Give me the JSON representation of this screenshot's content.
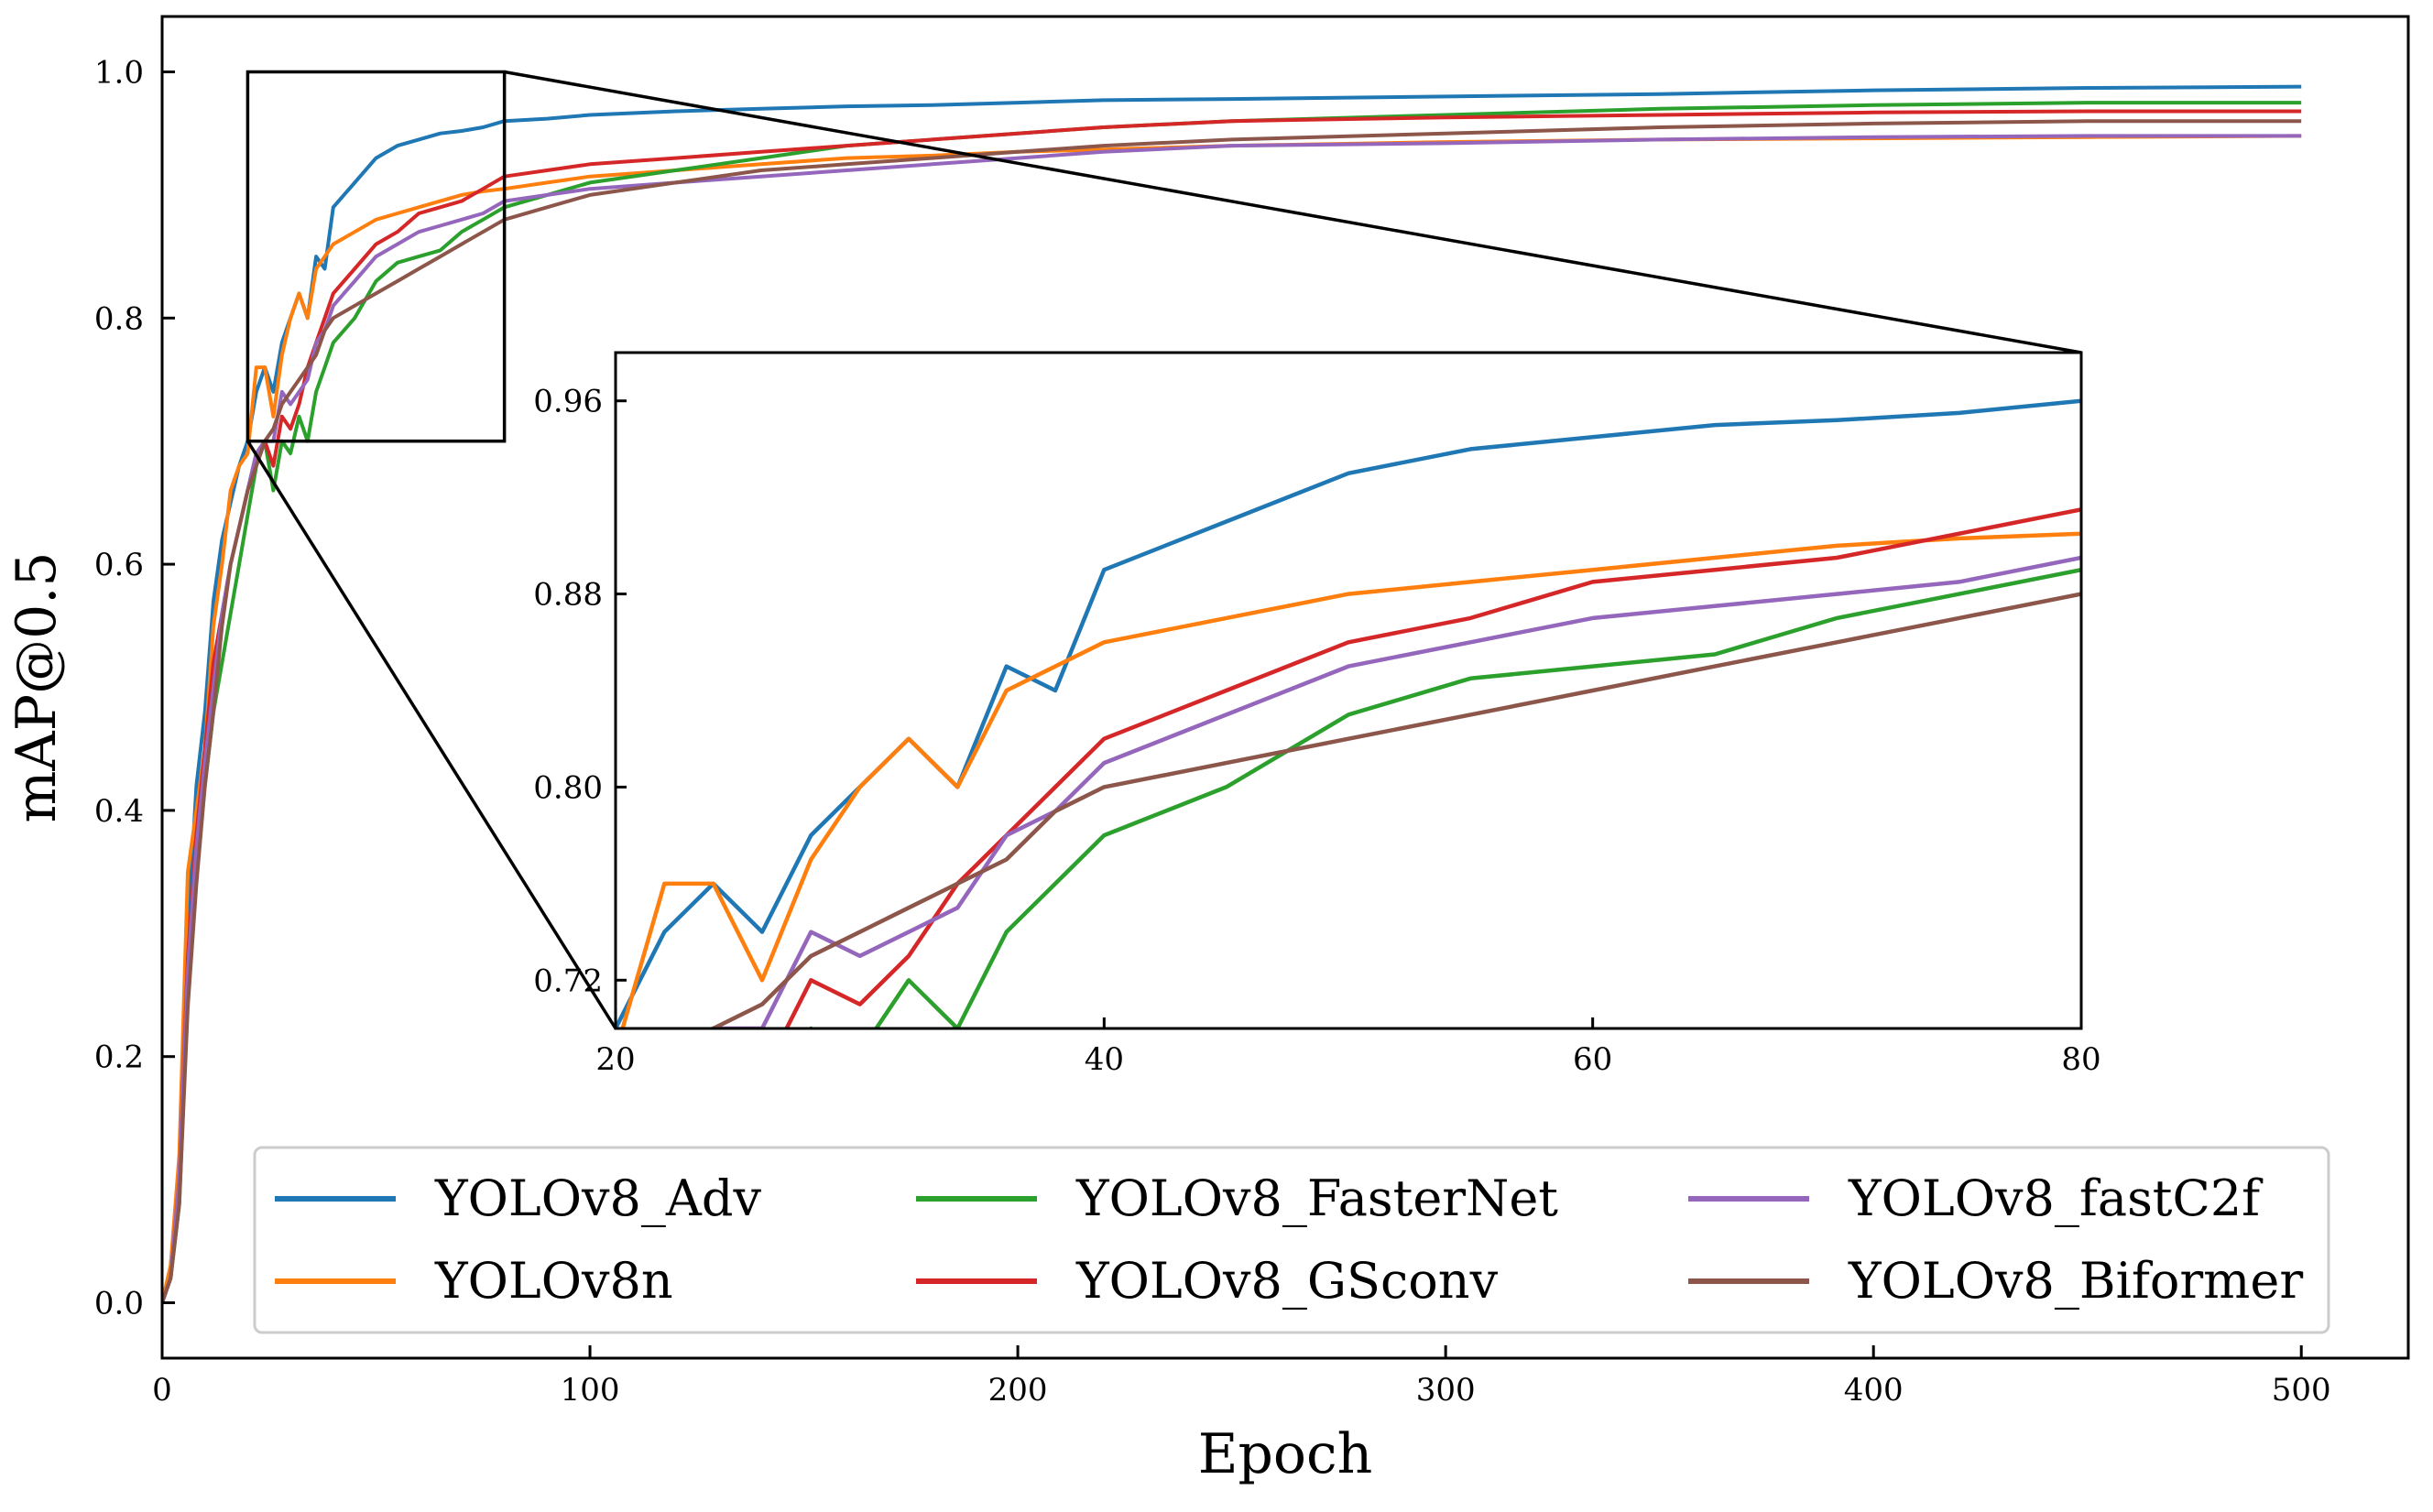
{
  "chart_data": {
    "type": "line",
    "xlabel": "Epoch",
    "ylabel": "mAP@0.5",
    "xlim": [
      0,
      525
    ],
    "ylim": [
      -0.045,
      1.045
    ],
    "x_ticks": [
      0,
      100,
      200,
      300,
      400,
      500
    ],
    "x_tick_labels": [
      "0",
      "100",
      "200",
      "300",
      "400",
      "500"
    ],
    "y_ticks": [
      0.0,
      0.2,
      0.4,
      0.6,
      0.8,
      1.0
    ],
    "y_tick_labels": [
      "0.0",
      "0.2",
      "0.4",
      "0.6",
      "0.8",
      "1.0"
    ],
    "legend_position": "lower-right",
    "series": [
      {
        "name": "YOLOv8_Adv",
        "color": "#1f77b4",
        "x": [
          0,
          2,
          4,
          6,
          8,
          10,
          12,
          14,
          16,
          18,
          20,
          22,
          24,
          26,
          28,
          30,
          32,
          34,
          36,
          38,
          40,
          45,
          50,
          55,
          60,
          65,
          70,
          75,
          80,
          90,
          100,
          120,
          140,
          160,
          180,
          200,
          220,
          250,
          300,
          350,
          400,
          450,
          500
        ],
        "y": [
          0.0,
          0.03,
          0.1,
          0.3,
          0.42,
          0.48,
          0.57,
          0.62,
          0.65,
          0.68,
          0.7,
          0.74,
          0.76,
          0.74,
          0.78,
          0.8,
          0.82,
          0.8,
          0.85,
          0.84,
          0.89,
          0.91,
          0.93,
          0.94,
          0.945,
          0.95,
          0.952,
          0.955,
          0.96,
          0.962,
          0.965,
          0.968,
          0.97,
          0.972,
          0.973,
          0.975,
          0.977,
          0.978,
          0.98,
          0.982,
          0.985,
          0.987,
          0.988
        ]
      },
      {
        "name": "YOLOv8n",
        "color": "#ff7f0e",
        "x": [
          0,
          2,
          4,
          6,
          8,
          10,
          12,
          14,
          16,
          18,
          20,
          22,
          24,
          26,
          28,
          30,
          32,
          34,
          36,
          38,
          40,
          45,
          50,
          55,
          60,
          65,
          70,
          75,
          80,
          90,
          100,
          120,
          140,
          160,
          180,
          200,
          220,
          250,
          300,
          350,
          400,
          450,
          500
        ],
        "y": [
          0.0,
          0.03,
          0.12,
          0.35,
          0.4,
          0.45,
          0.55,
          0.6,
          0.66,
          0.68,
          0.69,
          0.76,
          0.76,
          0.72,
          0.77,
          0.8,
          0.82,
          0.8,
          0.84,
          0.85,
          0.86,
          0.87,
          0.88,
          0.885,
          0.89,
          0.895,
          0.9,
          0.903,
          0.905,
          0.91,
          0.915,
          0.92,
          0.925,
          0.93,
          0.932,
          0.935,
          0.937,
          0.94,
          0.943,
          0.945,
          0.946,
          0.947,
          0.948
        ]
      },
      {
        "name": "YOLOv8_FasterNet",
        "color": "#2ca02c",
        "x": [
          0,
          2,
          4,
          6,
          8,
          10,
          12,
          14,
          16,
          18,
          20,
          22,
          24,
          26,
          28,
          30,
          32,
          34,
          36,
          38,
          40,
          45,
          50,
          55,
          60,
          65,
          70,
          75,
          80,
          90,
          100,
          120,
          140,
          160,
          180,
          200,
          220,
          250,
          300,
          350,
          400,
          450,
          500
        ],
        "y": [
          0.0,
          0.02,
          0.08,
          0.25,
          0.35,
          0.42,
          0.48,
          0.52,
          0.56,
          0.6,
          0.64,
          0.68,
          0.7,
          0.66,
          0.7,
          0.69,
          0.72,
          0.7,
          0.74,
          0.76,
          0.78,
          0.8,
          0.83,
          0.845,
          0.85,
          0.855,
          0.87,
          0.88,
          0.89,
          0.9,
          0.91,
          0.92,
          0.93,
          0.94,
          0.945,
          0.95,
          0.955,
          0.96,
          0.965,
          0.97,
          0.973,
          0.975,
          0.975
        ]
      },
      {
        "name": "YOLOv8_GSconv",
        "color": "#d62728",
        "x": [
          0,
          2,
          4,
          6,
          8,
          10,
          12,
          14,
          16,
          18,
          20,
          22,
          24,
          26,
          28,
          30,
          32,
          34,
          36,
          38,
          40,
          45,
          50,
          55,
          60,
          65,
          70,
          75,
          80,
          90,
          100,
          120,
          140,
          160,
          180,
          200,
          220,
          250,
          300,
          350,
          400,
          450,
          500
        ],
        "y": [
          0.0,
          0.02,
          0.1,
          0.28,
          0.38,
          0.45,
          0.52,
          0.56,
          0.6,
          0.63,
          0.66,
          0.69,
          0.7,
          0.68,
          0.72,
          0.71,
          0.73,
          0.76,
          0.78,
          0.8,
          0.82,
          0.84,
          0.86,
          0.87,
          0.885,
          0.89,
          0.895,
          0.905,
          0.915,
          0.92,
          0.925,
          0.93,
          0.935,
          0.94,
          0.945,
          0.95,
          0.955,
          0.96,
          0.963,
          0.965,
          0.967,
          0.968,
          0.968
        ]
      },
      {
        "name": "YOLOv8_fastC2f",
        "color": "#9467bd",
        "x": [
          0,
          2,
          4,
          6,
          8,
          10,
          12,
          14,
          16,
          18,
          20,
          22,
          24,
          26,
          28,
          30,
          32,
          34,
          36,
          38,
          40,
          45,
          50,
          55,
          60,
          65,
          70,
          75,
          80,
          90,
          100,
          120,
          140,
          160,
          180,
          200,
          220,
          250,
          300,
          350,
          400,
          450,
          500
        ],
        "y": [
          0.0,
          0.02,
          0.1,
          0.27,
          0.37,
          0.44,
          0.5,
          0.56,
          0.6,
          0.63,
          0.66,
          0.69,
          0.7,
          0.7,
          0.74,
          0.73,
          0.74,
          0.75,
          0.78,
          0.79,
          0.81,
          0.83,
          0.85,
          0.86,
          0.87,
          0.875,
          0.88,
          0.885,
          0.895,
          0.9,
          0.905,
          0.91,
          0.915,
          0.92,
          0.925,
          0.93,
          0.935,
          0.94,
          0.942,
          0.945,
          0.947,
          0.948,
          0.948
        ]
      },
      {
        "name": "YOLOv8_Biformer",
        "color": "#8c564b",
        "x": [
          0,
          2,
          4,
          6,
          8,
          10,
          12,
          14,
          16,
          18,
          20,
          22,
          24,
          26,
          28,
          30,
          32,
          34,
          36,
          38,
          40,
          45,
          50,
          55,
          60,
          65,
          70,
          75,
          80,
          90,
          100,
          120,
          140,
          160,
          180,
          200,
          220,
          250,
          300,
          350,
          400,
          450,
          500
        ],
        "y": [
          0.0,
          0.02,
          0.08,
          0.24,
          0.34,
          0.42,
          0.48,
          0.55,
          0.6,
          0.63,
          0.66,
          0.68,
          0.7,
          0.71,
          0.73,
          0.74,
          0.75,
          0.76,
          0.77,
          0.79,
          0.8,
          0.81,
          0.82,
          0.83,
          0.84,
          0.85,
          0.86,
          0.87,
          0.88,
          0.89,
          0.9,
          0.91,
          0.92,
          0.925,
          0.93,
          0.935,
          0.94,
          0.945,
          0.95,
          0.955,
          0.958,
          0.96,
          0.96
        ]
      }
    ],
    "zoom_box": {
      "x_range": [
        20,
        80
      ],
      "y_range": [
        0.7,
        1.0
      ]
    },
    "inset": {
      "xlim": [
        20,
        80
      ],
      "ylim": [
        0.7,
        0.98
      ],
      "x_ticks": [
        20,
        40,
        60,
        80
      ],
      "x_tick_labels": [
        "20",
        "40",
        "60",
        "80"
      ],
      "y_ticks": [
        0.72,
        0.8,
        0.88,
        0.96
      ],
      "y_tick_labels": [
        "0.72",
        "0.80",
        "0.88",
        "0.96"
      ]
    }
  }
}
